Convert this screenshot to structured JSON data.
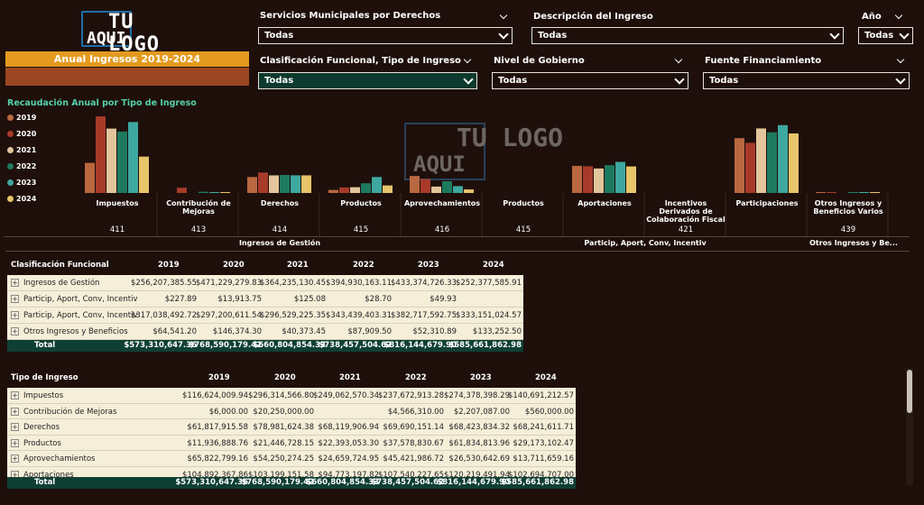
{
  "logo": {
    "line1": "TU LOGO",
    "line2": "AQUI"
  },
  "banner": {
    "title": "Anual Ingresos 2019-2024"
  },
  "slicers": {
    "servicios": {
      "title": "Servicios Municipales por Derechos",
      "value": "Todas"
    },
    "descripcion": {
      "title": "Descripción del Ingreso",
      "value": "Todas"
    },
    "anio": {
      "title": "Año",
      "value": "Todas"
    },
    "clasificacion": {
      "title": "Clasificación Funcional, Tipo de Ingreso",
      "value": "Todas"
    },
    "nivel": {
      "title": "Nivel de Gobierno",
      "value": "Todas"
    },
    "fuente": {
      "title": "Fuente Financiamiento",
      "value": "Todas"
    }
  },
  "chart": {
    "title": "Recaudación Anual por Tipo de Ingreso",
    "watermark1": "TU LOGO",
    "watermark2": "AQUI",
    "legend": [
      "2019",
      "2020",
      "2021",
      "2022",
      "2023",
      "2024"
    ],
    "colors": [
      "#b9683f",
      "#a83a2a",
      "#e3c59c",
      "#1e7a5f",
      "#3ea8a0",
      "#e8c46a"
    ],
    "group_labels": [
      "Ingresos de Gestión",
      "Particip, Aport, Conv, Incentiv",
      "Otros Ingresos y Be..."
    ],
    "codes": [
      "411",
      "413",
      "414",
      "415",
      "416",
      "415",
      "421",
      "439"
    ]
  },
  "chart_data": {
    "type": "bar",
    "categories": [
      "Impuestos",
      "Contribución de Mejoras",
      "Derechos",
      "Productos",
      "Aprovechamientos",
      "Productos",
      "Aportaciones",
      "Incentivos Derivados de Colaboración Fiscal",
      "Participaciones",
      "Otros Ingresos y Beneficios Varios"
    ],
    "series": [
      {
        "name": "2019",
        "values": [
          116.6,
          0.0,
          61.8,
          11.9,
          65.8,
          0,
          104.9,
          0,
          212.1,
          0.1
        ]
      },
      {
        "name": "2020",
        "values": [
          296.3,
          20.3,
          79.0,
          21.4,
          54.3,
          0,
          103.2,
          0,
          194.0,
          0.1
        ]
      },
      {
        "name": "2021",
        "values": [
          249.1,
          0,
          68.1,
          22.4,
          24.7,
          0,
          94.8,
          0,
          249.7,
          0.0
        ]
      },
      {
        "name": "2022",
        "values": [
          237.7,
          4.6,
          69.7,
          37.6,
          45.4,
          0,
          107.5,
          0,
          234.9,
          0.1
        ]
      },
      {
        "name": "2023",
        "values": [
          274.4,
          2.2,
          68.4,
          61.8,
          26.5,
          0,
          120.2,
          0,
          262.5,
          0.1
        ]
      },
      {
        "name": "2024",
        "values": [
          140.7,
          0.6,
          68.2,
          29.2,
          13.7,
          0,
          102.7,
          0,
          230.3,
          0.1
        ]
      }
    ],
    "units": "millones (estimado)"
  },
  "table1": {
    "header": "Clasificación Funcional",
    "years": [
      "2019",
      "2020",
      "2021",
      "2022",
      "2023",
      "2024"
    ],
    "rows": [
      {
        "name": "Ingresos de Gestión",
        "vals": [
          "$256,207,385.55",
          "$471,229,279.83",
          "$364,235,130.45",
          "$394,930,163.11",
          "$433,374,726.33",
          "$252,377,585.91"
        ]
      },
      {
        "name": "Particip, Aport, Conv, Incentiv",
        "vals": [
          "$227.89",
          "$13,913.75",
          "$125.08",
          "$28.70",
          "$49.93",
          ""
        ]
      },
      {
        "name": "Particip, Aport, Conv, Incentiv",
        "vals": [
          "$317,038,492.72",
          "$297,200,611.54",
          "$296,529,225.35",
          "$343,439,403.31",
          "$382,717,592.75",
          "$333,151,024.57"
        ]
      },
      {
        "name": "Otros Ingresos y Beneficios",
        "vals": [
          "$64,541.20",
          "$146,374.30",
          "$40,373.45",
          "$87,909.50",
          "$52,310.89",
          "$133,252.50"
        ]
      }
    ],
    "total": {
      "name": "Total",
      "vals": [
        "$573,310,647.36",
        "$768,590,179.42",
        "$660,804,854.33",
        "$738,457,504.62",
        "$816,144,679.90",
        "$585,661,862.98"
      ]
    }
  },
  "table2": {
    "header": "Tipo de Ingreso",
    "years": [
      "2019",
      "2020",
      "2021",
      "2022",
      "2023",
      "2024"
    ],
    "rows": [
      {
        "name": "Impuestos",
        "vals": [
          "$116,624,009.94",
          "$296,314,566.80",
          "$249,062,570.34",
          "$237,672,913.28",
          "$274,378,398.29",
          "$140,691,212.57"
        ]
      },
      {
        "name": "Contribución de Mejoras",
        "vals": [
          "$6,000.00",
          "$20,250,000.00",
          "",
          "$4,566,310.00",
          "$2,207,087.00",
          "$560,000.00"
        ]
      },
      {
        "name": "Derechos",
        "vals": [
          "$61,817,915.58",
          "$78,981,624.38",
          "$68,119,906.94",
          "$69,690,151.14",
          "$68,423,834.32",
          "$68,241,611.71"
        ]
      },
      {
        "name": "Productos",
        "vals": [
          "$11,936,888.76",
          "$21,446,728.15",
          "$22,393,053.30",
          "$37,578,830.67",
          "$61,834,813.96",
          "$29,173,102.47"
        ]
      },
      {
        "name": "Aprovechamientos",
        "vals": [
          "$65,822,799.16",
          "$54,250,274.25",
          "$24,659,724.95",
          "$45,421,986.72",
          "$26,530,642.69",
          "$13,711,659.16"
        ]
      },
      {
        "name": "Aportaciones",
        "vals": [
          "$104,892,367.86",
          "$103,199,151.58",
          "$94,773,197.82",
          "$107,540,227.65",
          "$120,219,491.94",
          "$102,694,707.00"
        ]
      }
    ],
    "total": {
      "name": "Total",
      "vals": [
        "$573,310,647.36",
        "$768,590,179.42",
        "$660,804,854.33",
        "$738,457,504.62",
        "$816,144,679.90",
        "$585,661,862.98"
      ]
    }
  }
}
